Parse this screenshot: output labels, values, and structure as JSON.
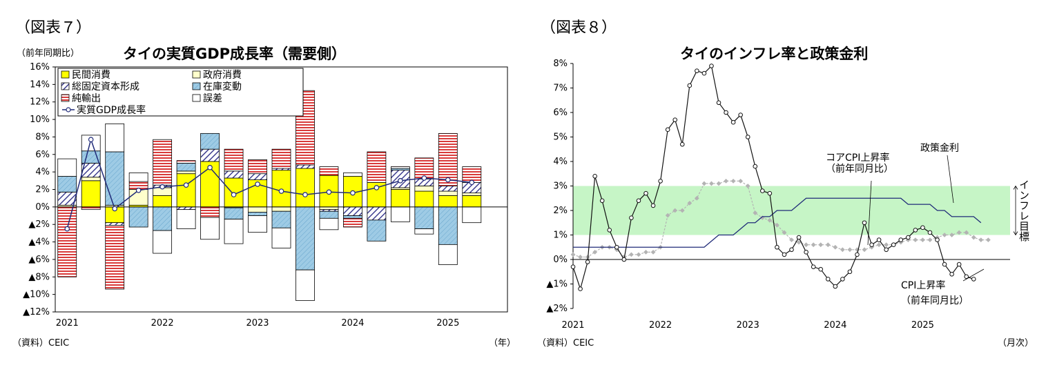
{
  "fig7": {
    "label": "（図表７）",
    "title": "タイの実質GDP成長率（需要側）",
    "unit_label": "（前年同期比）",
    "source": "（資料）CEIC",
    "x_unit": "（年）"
  },
  "fig8": {
    "label": "（図表８）",
    "title": "タイのインフレ率と政策金利",
    "source": "（資料）CEIC",
    "x_unit": "（月次）"
  },
  "colors": {
    "private": "#ffff00",
    "government": "#ffffcc",
    "gfcf": "#3d3d8f",
    "inventory": "#9ecbe5",
    "netexports": "#d93a3a",
    "error": "#ffffff",
    "gdp_line": "#1f2a78",
    "target_band": "#c6f5c6",
    "headline": "#111111",
    "core": "#b3b3b3",
    "policy": "#1f2a78"
  },
  "chart_data": [
    {
      "type": "bar",
      "stacked": true,
      "title": "タイの実質GDP成長率（需要側）",
      "ylabel": "（前年同期比）",
      "xlabel": "（年）",
      "ylim": [
        -12,
        16
      ],
      "yticks": [
        {
          "v": 16,
          "label": "16%"
        },
        {
          "v": 14,
          "label": "14%"
        },
        {
          "v": 12,
          "label": "12%"
        },
        {
          "v": 10,
          "label": "10%"
        },
        {
          "v": 8,
          "label": "8%"
        },
        {
          "v": 6,
          "label": "6%"
        },
        {
          "v": 4,
          "label": "4%"
        },
        {
          "v": 2,
          "label": "2%"
        },
        {
          "v": 0,
          "label": "0%"
        },
        {
          "v": -2,
          "label": "▲2%"
        },
        {
          "v": -4,
          "label": "▲4%"
        },
        {
          "v": -6,
          "label": "▲6%"
        },
        {
          "v": -8,
          "label": "▲8%"
        },
        {
          "v": -10,
          "label": "▲10%"
        },
        {
          "v": -12,
          "label": "▲12%"
        }
      ],
      "year_labels": [
        {
          "index": 0,
          "label": "2021"
        },
        {
          "index": 4,
          "label": "2022"
        },
        {
          "index": 8,
          "label": "2023"
        },
        {
          "index": 12,
          "label": "2024"
        },
        {
          "index": 16,
          "label": "2025"
        }
      ],
      "categories": [
        "2021Q1",
        "2021Q2",
        "2021Q3",
        "2021Q4",
        "2022Q1",
        "2022Q2",
        "2022Q3",
        "2022Q4",
        "2023Q1",
        "2023Q2",
        "2023Q3",
        "2023Q4",
        "2024Q1",
        "2024Q2",
        "2024Q3",
        "2024Q4",
        "2025Q1",
        "2025Q2",
        "2025Q3"
      ],
      "series": [
        {
          "key": "private",
          "name": "民間消費",
          "values": [
            0.0,
            3.0,
            -1.8,
            0.2,
            1.3,
            3.8,
            5.2,
            3.3,
            3.1,
            4.2,
            4.4,
            3.6,
            3.5,
            2.8,
            2.0,
            1.8,
            1.3,
            1.3,
            null
          ]
        },
        {
          "key": "government",
          "name": "政府消費",
          "values": [
            0.2,
            0.4,
            0.2,
            1.8,
            0.9,
            0.3,
            0.0,
            -0.1,
            -0.6,
            -0.5,
            0.0,
            -0.3,
            0.0,
            0.0,
            0.2,
            0.6,
            0.5,
            0.3,
            null
          ]
        },
        {
          "key": "gfcf",
          "name": "総固定資本形成",
          "values": [
            1.5,
            1.6,
            -0.3,
            0.0,
            0.3,
            -0.3,
            1.4,
            0.8,
            0.7,
            0.2,
            0.4,
            -0.2,
            -1.0,
            -1.5,
            2.0,
            0.8,
            0.6,
            1.2,
            null
          ]
        },
        {
          "key": "inventory",
          "name": "在庫変動",
          "values": [
            1.8,
            1.4,
            6.1,
            -2.3,
            -2.7,
            0.9,
            1.8,
            -1.3,
            -0.4,
            -1.9,
            -7.2,
            -0.8,
            -0.3,
            -2.4,
            0.2,
            -2.5,
            -4.3,
            0.0,
            null
          ]
        },
        {
          "key": "netexports",
          "name": "純輸出",
          "values": [
            -8.0,
            -0.3,
            -7.3,
            0.9,
            5.2,
            0.3,
            -1.2,
            2.5,
            1.6,
            2.2,
            8.5,
            1.0,
            -1.0,
            3.5,
            0.2,
            2.4,
            6.0,
            1.8,
            null
          ]
        },
        {
          "key": "error",
          "name": "誤差",
          "values": [
            2.0,
            1.8,
            3.2,
            1.0,
            -2.6,
            -2.2,
            -2.5,
            -2.8,
            -1.9,
            -2.3,
            -3.5,
            -1.3,
            0.4,
            0.0,
            -1.7,
            -0.6,
            -2.3,
            -1.8,
            null
          ]
        }
      ],
      "line": {
        "name": "実質GDP成長率",
        "values": [
          -2.5,
          7.7,
          -0.2,
          1.9,
          2.3,
          2.5,
          4.5,
          1.4,
          2.6,
          1.8,
          1.4,
          1.7,
          1.6,
          2.2,
          3.0,
          3.3,
          3.1,
          2.8,
          null
        ]
      }
    },
    {
      "type": "line",
      "title": "タイのインフレ率と政策金利",
      "xlabel": "（月次）",
      "ylim": [
        -2,
        8
      ],
      "yticks": [
        {
          "v": 8,
          "label": "8%"
        },
        {
          "v": 7,
          "label": "7%"
        },
        {
          "v": 6,
          "label": "6%"
        },
        {
          "v": 5,
          "label": "5%"
        },
        {
          "v": 4,
          "label": "4%"
        },
        {
          "v": 3,
          "label": "3%"
        },
        {
          "v": 2,
          "label": "2%"
        },
        {
          "v": 1,
          "label": "1%"
        },
        {
          "v": 0,
          "label": "0%"
        },
        {
          "v": -1,
          "label": "▲1%"
        },
        {
          "v": -2,
          "label": "▲2%"
        }
      ],
      "x_start": "2021-01",
      "year_labels": [
        {
          "index": 0,
          "label": "2021"
        },
        {
          "index": 12,
          "label": "2022"
        },
        {
          "index": 24,
          "label": "2023"
        },
        {
          "index": 36,
          "label": "2024"
        },
        {
          "index": 48,
          "label": "2025"
        }
      ],
      "months_total": 60,
      "target_band": {
        "low": 1,
        "high": 3,
        "label": "インフレ目標"
      },
      "series": [
        {
          "key": "headline",
          "name": "CPI上昇率（前年同月比）",
          "label_lines": [
            "CPI上昇率",
            "（前年同月比）"
          ],
          "values": [
            -0.3,
            -1.2,
            -0.1,
            3.4,
            2.4,
            1.2,
            0.5,
            0.0,
            1.7,
            2.4,
            2.7,
            2.2,
            3.2,
            5.3,
            5.7,
            4.7,
            7.1,
            7.7,
            7.6,
            7.9,
            6.4,
            6.0,
            5.6,
            5.9,
            5.0,
            3.8,
            2.8,
            2.7,
            0.5,
            0.2,
            0.4,
            0.9,
            0.3,
            -0.3,
            -0.4,
            -0.8,
            -1.1,
            -0.8,
            -0.5,
            0.2,
            1.5,
            0.6,
            0.8,
            0.4,
            0.6,
            0.8,
            0.9,
            1.2,
            1.3,
            1.1,
            0.8,
            -0.2,
            -0.6,
            -0.2,
            -0.7,
            -0.8
          ]
        },
        {
          "key": "core",
          "name": "コアCPI上昇率（前年同月比）",
          "label_lines": [
            "コアCPI上昇率",
            "（前年同月比）"
          ],
          "values": [
            0.2,
            0.1,
            0.1,
            0.3,
            0.5,
            0.5,
            0.4,
            0.1,
            0.2,
            0.2,
            0.3,
            0.3,
            0.5,
            1.8,
            2.0,
            2.0,
            2.3,
            2.5,
            3.1,
            3.1,
            3.1,
            3.2,
            3.2,
            3.2,
            3.0,
            1.9,
            1.7,
            1.6,
            1.4,
            1.1,
            0.8,
            0.7,
            0.6,
            0.6,
            0.6,
            0.6,
            0.5,
            0.4,
            0.4,
            0.4,
            0.4,
            0.5,
            0.6,
            0.6,
            0.6,
            0.7,
            0.8,
            0.8,
            0.8,
            0.8,
            0.9,
            1.0,
            1.0,
            1.1,
            1.1,
            0.9,
            0.8,
            0.8
          ]
        },
        {
          "key": "policy",
          "name": "政策金利",
          "label_lines": [
            "政策金利"
          ],
          "values": [
            0.5,
            0.5,
            0.5,
            0.5,
            0.5,
            0.5,
            0.5,
            0.5,
            0.5,
            0.5,
            0.5,
            0.5,
            0.5,
            0.5,
            0.5,
            0.5,
            0.5,
            0.5,
            0.5,
            0.75,
            1.0,
            1.0,
            1.0,
            1.25,
            1.5,
            1.5,
            1.75,
            1.75,
            2.0,
            2.0,
            2.0,
            2.25,
            2.5,
            2.5,
            2.5,
            2.5,
            2.5,
            2.5,
            2.5,
            2.5,
            2.5,
            2.5,
            2.5,
            2.5,
            2.5,
            2.5,
            2.25,
            2.25,
            2.25,
            2.25,
            2.0,
            2.0,
            1.75,
            1.75,
            1.75,
            1.75,
            1.5
          ]
        }
      ]
    }
  ]
}
